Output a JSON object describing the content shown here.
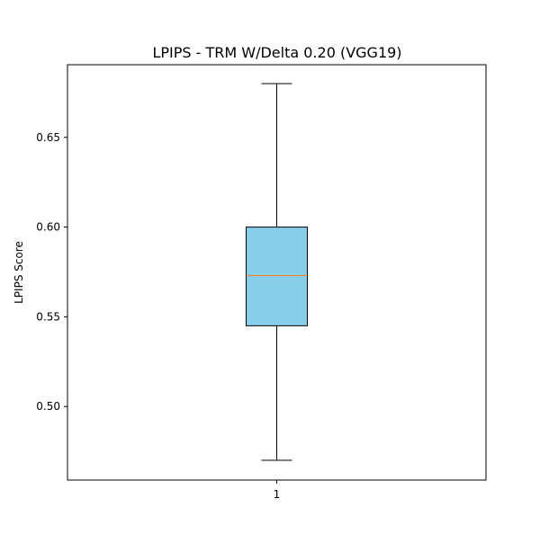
{
  "chart_data": {
    "type": "box",
    "title": "LPIPS - TRM W/Delta 0.20 (VGG19)",
    "xlabel": "",
    "ylabel": "LPIPS Score",
    "categories": [
      "1"
    ],
    "ylim": [
      0.459,
      0.6905
    ],
    "yticks": [
      0.5,
      0.55,
      0.6,
      0.65
    ],
    "ytick_labels": [
      "0.50",
      "0.55",
      "0.60",
      "0.65"
    ],
    "grid": false,
    "boxes": [
      {
        "category": "1",
        "whisker_low": 0.47,
        "q1": 0.545,
        "median": 0.573,
        "q3": 0.6,
        "whisker_high": 0.68
      }
    ],
    "colors": {
      "box_fill": "#87ceeb",
      "median_line": "#ff7f0e",
      "lines": "#000000",
      "background": "#ffffff"
    }
  }
}
